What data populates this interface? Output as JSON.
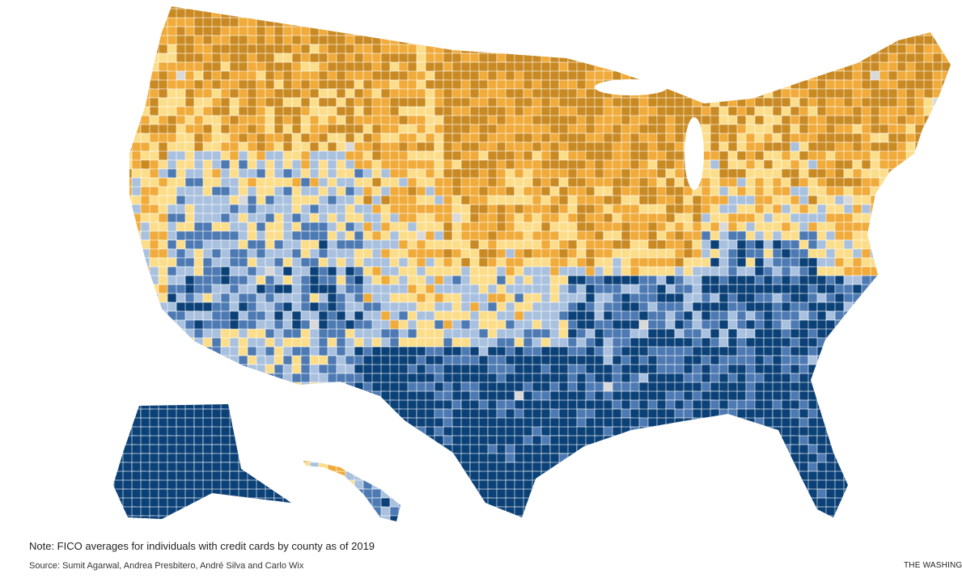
{
  "map": {
    "subject": "FICO averages by county",
    "palette": {
      "lowest": "#0b4177",
      "low": "#4e7ab3",
      "below_mid": "#a9c1df",
      "above_mid": "#fcdd8a",
      "high": "#f0ab3b",
      "highest": "#c98a23",
      "no_data": "#d9d9d9"
    }
  },
  "footer": {
    "note": "Note: FICO averages for individuals with credit cards by county as of 2019",
    "source": "Source: Sumit Agarwal, Andrea Presbitero, André Silva and Carlo Wix",
    "brand": "THE WASHINGTON POST"
  }
}
